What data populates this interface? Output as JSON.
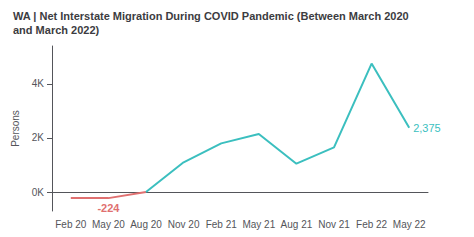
{
  "chart_data": {
    "type": "line",
    "title": "WA | Net Interstate Migration During COVID Pandemic (Between March 2020\nand March 2022)",
    "ylabel": "Persons",
    "categories": [
      "Feb 20",
      "May 20",
      "Aug 20",
      "Nov 20",
      "Feb 21",
      "May 21",
      "Aug 21",
      "Nov 21",
      "Feb 22",
      "May 22"
    ],
    "series": [
      {
        "color": "#e07070",
        "values": [
          -224,
          -224,
          0,
          null,
          null,
          null,
          null,
          null,
          null,
          null
        ]
      },
      {
        "color": "#3bbfbf",
        "values": [
          null,
          null,
          0,
          1100,
          1800,
          2150,
          1050,
          1650,
          4750,
          2375
        ]
      }
    ],
    "ylim": [
      -700,
      5400
    ],
    "yticks": [
      {
        "value": 0,
        "label": "0K"
      },
      {
        "value": 2000,
        "label": "2K"
      },
      {
        "value": 4000,
        "label": "4K"
      }
    ],
    "grid": false,
    "annotations": [
      {
        "text": "-224",
        "x": "May 20",
        "y": -224
      },
      {
        "text": "2,375",
        "x": "May 22",
        "y": 2375
      }
    ]
  }
}
